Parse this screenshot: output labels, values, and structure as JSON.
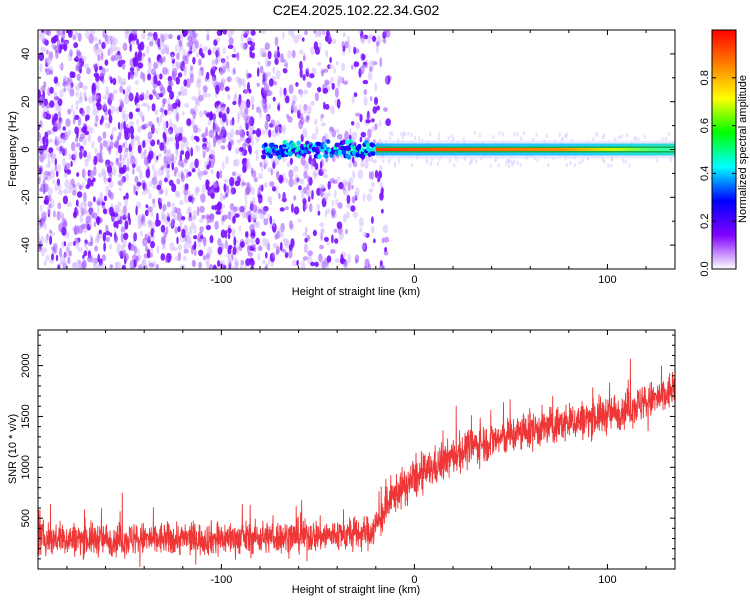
{
  "title": "C2E4.2025.102.22.34.G02",
  "chart_data": [
    {
      "type": "heatmap",
      "xlabel": "Height of straight line (km)",
      "ylabel": "Frequency (Hz)",
      "xlim": [
        -195,
        135
      ],
      "ylim": [
        -50,
        50
      ],
      "xticks": [
        -100,
        0,
        100
      ],
      "xtick_labels": [
        "-100",
        "0",
        "100"
      ],
      "yticks": [
        -40,
        -20,
        0,
        20,
        40
      ],
      "ytick_labels": [
        "-40",
        "-20",
        "0",
        "20",
        "40"
      ],
      "grid": false,
      "colorbar": {
        "label": "Normalized spectral amplitude",
        "range": [
          0,
          1
        ],
        "ticks": [
          0.0,
          0.2,
          0.4,
          0.6,
          0.8
        ],
        "tick_labels": [
          "0.0",
          "0.2",
          "0.4",
          "0.6",
          "0.8"
        ],
        "colormap": [
          "#ffffff",
          "#7f00ff",
          "#0000ff",
          "#00ffff",
          "#00ff00",
          "#ffff00",
          "#ff7f00",
          "#ff0000"
        ]
      },
      "features": {
        "noise_region_x": [
          -195,
          -18
        ],
        "line_start_x": -78,
        "carrier_frequency": 0,
        "strong_from_x": -20
      }
    },
    {
      "type": "line",
      "xlabel": "Height of straight line (km)",
      "ylabel": "SNR (10 * v/v)",
      "xlim": [
        -195,
        135
      ],
      "ylim": [
        0,
        2350
      ],
      "xticks": [
        -100,
        0,
        100
      ],
      "xtick_labels": [
        "-100",
        "0",
        "100"
      ],
      "yticks": [
        500,
        1000,
        1500,
        2000
      ],
      "ytick_labels": [
        "500",
        "1000",
        "1500",
        "2000"
      ],
      "grid": false,
      "color": "#ef3636",
      "trend_x": [
        -195,
        -150,
        -100,
        -60,
        -30,
        -22,
        -18,
        -10,
        0,
        10,
        30,
        60,
        100,
        130,
        135
      ],
      "trend_y": [
        300,
        290,
        300,
        320,
        340,
        370,
        480,
        740,
        880,
        1000,
        1210,
        1360,
        1520,
        1700,
        1800
      ]
    }
  ]
}
